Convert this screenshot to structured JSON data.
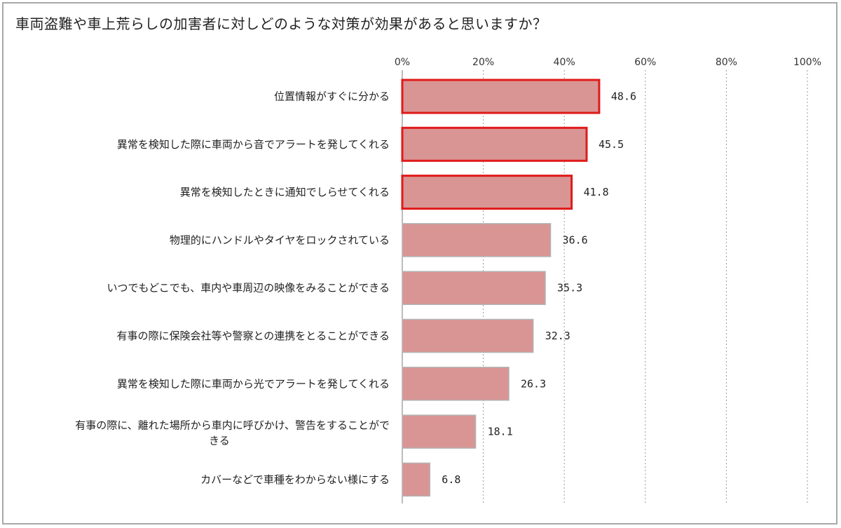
{
  "chart_data": {
    "type": "bar",
    "orientation": "horizontal",
    "title": "車両盗難や車上荒らしの加害者に対しどのような対策が効果があると思いますか？",
    "xlim": [
      0,
      100
    ],
    "x_ticks": [
      "0%",
      "20%",
      "40%",
      "60%",
      "80%",
      "100%"
    ],
    "grid": true,
    "categories": [
      "位置情報がすぐに分かる",
      "異常を検知した際に車両から音でアラートを発してくれる",
      "異常を検知したときに通知でしらせてくれる",
      "物理的にハンドルやタイヤをロックされている",
      "いつでもどこでも、車内や車周辺の映像をみることができる",
      "有事の際に保険会社等や警察との連携をとることができる",
      "異常を検知した際に車両から光でアラートを発してくれる",
      "有事の際に、離れた場所から車内に呼びかけ、警告をすることができる",
      "カバーなどで車種をわからない様にする"
    ],
    "values": [
      48.6,
      45.5,
      41.8,
      36.6,
      35.3,
      32.3,
      26.3,
      18.1,
      6.8
    ],
    "value_labels": [
      "48.6",
      "45.5",
      "41.8",
      "36.6",
      "35.3",
      "32.3",
      "26.3",
      "18.1",
      "6.8"
    ],
    "highlighted": [
      true,
      true,
      true,
      false,
      false,
      false,
      false,
      false,
      false
    ],
    "colors": {
      "bar": "#d99594",
      "bar_border": "#b3b3b3",
      "highlight_border": "#e01a1a",
      "grid": "#9a9a9a"
    }
  }
}
